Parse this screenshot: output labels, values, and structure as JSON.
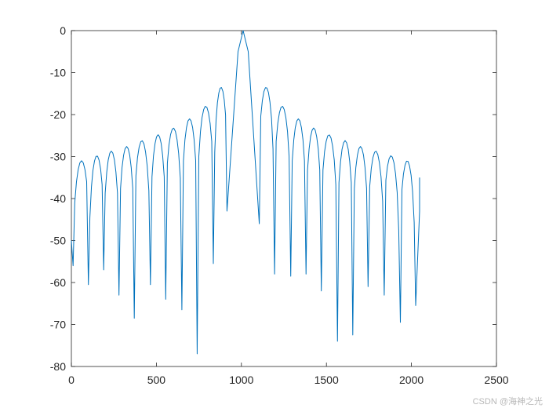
{
  "chart_data": {
    "type": "line",
    "title": "",
    "xlabel": "",
    "ylabel": "",
    "xlim": [
      0,
      2500
    ],
    "ylim": [
      -80,
      0
    ],
    "xticks": [
      0,
      500,
      1000,
      1500,
      2000,
      2500
    ],
    "yticks": [
      0,
      -10,
      -20,
      -30,
      -40,
      -50,
      -60,
      -70,
      -80
    ],
    "grid": false,
    "legend": "none",
    "series_color": "#0072BD",
    "main_lobe": {
      "x": [
        915,
        980,
        1010,
        1040,
        1105
      ],
      "y": [
        -43,
        -5,
        0,
        -5,
        -46
      ]
    },
    "side_lobes": [
      {
        "x": 60,
        "peak": -31
      },
      {
        "x": 150,
        "peak": -29.8
      },
      {
        "x": 235,
        "peak": -28.7
      },
      {
        "x": 325,
        "peak": -27.6
      },
      {
        "x": 415,
        "peak": -26.2
      },
      {
        "x": 510,
        "peak": -24.8
      },
      {
        "x": 600,
        "peak": -23.2
      },
      {
        "x": 695,
        "peak": -21
      },
      {
        "x": 790,
        "peak": -18
      },
      {
        "x": 880,
        "peak": -13.5
      },
      {
        "x": 1145,
        "peak": -13.5
      },
      {
        "x": 1240,
        "peak": -18
      },
      {
        "x": 1335,
        "peak": -21
      },
      {
        "x": 1425,
        "peak": -23.2
      },
      {
        "x": 1515,
        "peak": -24.8
      },
      {
        "x": 1610,
        "peak": -26.2
      },
      {
        "x": 1700,
        "peak": -27.6
      },
      {
        "x": 1790,
        "peak": -28.7
      },
      {
        "x": 1880,
        "peak": -29.8
      },
      {
        "x": 1975,
        "peak": -31
      }
    ],
    "nulls": [
      {
        "x": 100,
        "y": -60.5
      },
      {
        "x": 190,
        "y": -57
      },
      {
        "x": 280,
        "y": -63
      },
      {
        "x": 370,
        "y": -68.5
      },
      {
        "x": 465,
        "y": -60.5
      },
      {
        "x": 555,
        "y": -64
      },
      {
        "x": 650,
        "y": -66.5
      },
      {
        "x": 740,
        "y": -77
      },
      {
        "x": 835,
        "y": -55.5
      },
      {
        "x": 1195,
        "y": -58
      },
      {
        "x": 1290,
        "y": -58.5
      },
      {
        "x": 1380,
        "y": -58
      },
      {
        "x": 1470,
        "y": -62
      },
      {
        "x": 1565,
        "y": -74
      },
      {
        "x": 1655,
        "y": -72.5
      },
      {
        "x": 1745,
        "y": -61
      },
      {
        "x": 1840,
        "y": -63
      },
      {
        "x": 1935,
        "y": -69.5
      },
      {
        "x": 2025,
        "y": -65.5
      }
    ],
    "start": {
      "x": 0,
      "y": -50
    },
    "end": {
      "x": 2048,
      "y": -35
    }
  },
  "watermark": "CSDN @海神之光"
}
